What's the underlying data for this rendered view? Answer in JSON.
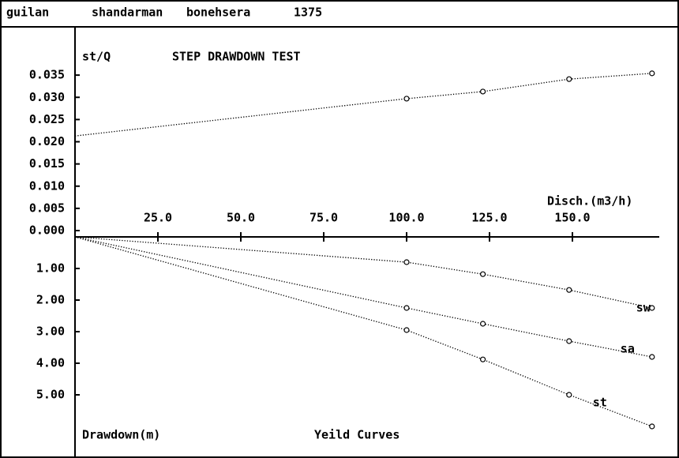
{
  "header": [
    "guilan",
    "shandarman",
    "bonehsera",
    "1375"
  ],
  "chart_data": [
    {
      "type": "line",
      "title": "STEP DRAWDOWN TEST",
      "y_label": "st/Q",
      "x_label": "Disch.(m3/h)",
      "xlim": [
        0,
        175
      ],
      "xticks": [
        {
          "value": 25,
          "label": "25.0"
        },
        {
          "value": 50,
          "label": "50.0"
        },
        {
          "value": 75,
          "label": "75.0"
        },
        {
          "value": 100,
          "label": "100.0"
        },
        {
          "value": 125,
          "label": "125.0"
        },
        {
          "value": 150,
          "label": "150.0"
        }
      ],
      "ylim": [
        0,
        0.04
      ],
      "yticks": [
        0.035,
        {
          "value": 0.03,
          "label": "0.030"
        },
        0.025,
        {
          "value": 0.02,
          "label": "0.020"
        },
        0.015,
        {
          "value": 0.01,
          "label": "0.010"
        },
        0.005,
        {
          "value": 0,
          "label": "0.000"
        }
      ],
      "x": [
        0,
        100,
        123,
        149,
        174
      ],
      "series": [
        {
          "color": "#000000",
          "values": [
            0.0213,
            0.0297,
            0.0313,
            0.0341,
            0.0354
          ]
        }
      ]
    },
    {
      "type": "line",
      "title": "Yeild Curves",
      "y_label": "Drawdown(m)",
      "inverted": true,
      "xlim": [
        0,
        175
      ],
      "ylim": [
        0,
        6.5
      ],
      "yticks": [
        {
          "value": 1,
          "label": "1.00"
        },
        {
          "value": 2,
          "label": "2.00"
        },
        {
          "value": 3,
          "label": "3.00"
        },
        {
          "value": 4,
          "label": "4.00"
        },
        {
          "value": 5,
          "label": "5.00"
        }
      ],
      "x": [
        0,
        100,
        123,
        149,
        174
      ],
      "series": [
        {
          "name": "sw",
          "color": "#000000",
          "values": [
            0,
            0.8,
            1.18,
            1.68,
            2.25
          ]
        },
        {
          "name": "sa",
          "color": "#000000",
          "values": [
            0,
            2.25,
            2.75,
            3.3,
            3.8
          ]
        },
        {
          "name": "st",
          "color": "#000000",
          "values": [
            0,
            2.95,
            3.88,
            5.0,
            6.0
          ]
        }
      ]
    }
  ]
}
